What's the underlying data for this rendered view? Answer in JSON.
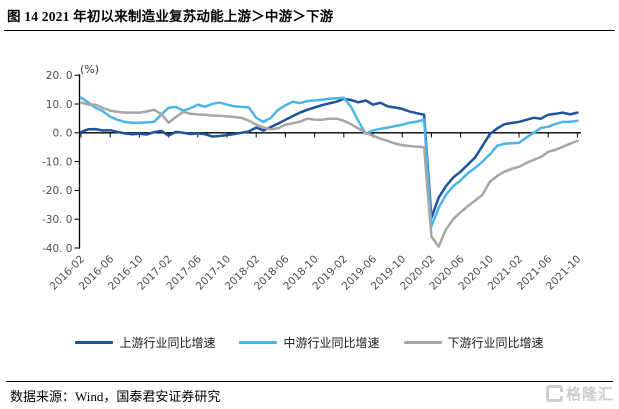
{
  "title": "图 14 2021 年初以来制造业复苏动能上游＞中游＞下游",
  "unit_label": "(%)",
  "footer": {
    "source": "数据来源：Wind，国泰君安证券研究"
  },
  "watermark": {
    "text": "格隆汇"
  },
  "axis_colors": {
    "axis": "#000000",
    "tick_label": "#4d4d4d"
  },
  "chart_data": {
    "type": "line",
    "title": "图 14 2021 年初以来制造业复苏动能上游＞中游＞下游",
    "unit": "(%)",
    "ylim": [
      -40,
      20
    ],
    "ytick_step": 10,
    "ytick_labels": [
      "20. 0",
      "10. 0",
      "0. 0",
      "-10. 0",
      "-20. 0",
      "-30. 0",
      "-40. 0"
    ],
    "ytick_values": [
      20,
      10,
      0,
      -10,
      -20,
      -30,
      -40
    ],
    "grid": false,
    "legend_position": "bottom",
    "x": [
      "2016-02",
      "2016-03",
      "2016-04",
      "2016-05",
      "2016-06",
      "2016-07",
      "2016-08",
      "2016-09",
      "2016-10",
      "2016-11",
      "2016-12",
      "2017-01",
      "2017-02",
      "2017-03",
      "2017-04",
      "2017-05",
      "2017-06",
      "2017-07",
      "2017-08",
      "2017-09",
      "2017-10",
      "2017-11",
      "2017-12",
      "2018-01",
      "2018-02",
      "2018-03",
      "2018-04",
      "2018-05",
      "2018-06",
      "2018-07",
      "2018-08",
      "2018-09",
      "2018-10",
      "2018-11",
      "2018-12",
      "2019-01",
      "2019-02",
      "2019-03",
      "2019-04",
      "2019-05",
      "2019-06",
      "2019-07",
      "2019-08",
      "2019-09",
      "2019-10",
      "2019-11",
      "2019-12",
      "2020-01",
      "2020-02",
      "2020-03",
      "2020-04",
      "2020-05",
      "2020-06",
      "2020-07",
      "2020-08",
      "2020-09",
      "2020-10",
      "2020-11",
      "2020-12",
      "2021-01",
      "2021-02",
      "2021-03",
      "2021-04",
      "2021-05",
      "2021-06",
      "2021-07",
      "2021-08",
      "2021-09",
      "2021-10"
    ],
    "x_tick_labels": [
      "2016-02",
      "2016-06",
      "2016-10",
      "2017-02",
      "2017-06",
      "2017-10",
      "2018-02",
      "2018-06",
      "2018-10",
      "2019-02",
      "2019-06",
      "2019-10",
      "2020-02",
      "2020-06",
      "2020-10",
      "2021-02",
      "2021-06",
      "2021-10"
    ],
    "x_tick_every": 4,
    "series": [
      {
        "name": "上游行业同比增速",
        "color": "#1e549c",
        "values": [
          0.3,
          1.2,
          1.3,
          0.8,
          0.9,
          0.3,
          -0.2,
          -0.5,
          -0.3,
          -0.6,
          0.2,
          0.7,
          -1.0,
          0.3,
          0.0,
          -0.4,
          -0.2,
          -0.5,
          -1.3,
          -1.1,
          -0.8,
          -0.4,
          0.0,
          0.5,
          1.8,
          0.8,
          2.0,
          3.2,
          4.5,
          5.8,
          7.0,
          8.0,
          8.8,
          9.6,
          10.2,
          10.8,
          11.8,
          11.4,
          10.6,
          11.2,
          9.8,
          10.4,
          9.2,
          8.8,
          8.3,
          7.4,
          6.8,
          6.3,
          -29.5,
          -22.5,
          -18.5,
          -15.5,
          -13.5,
          -11.0,
          -8.5,
          -4.5,
          -0.5,
          1.5,
          3.0,
          3.4,
          3.8,
          4.5,
          5.2,
          4.9,
          6.3,
          6.6,
          7.0,
          6.4,
          7.0
        ]
      },
      {
        "name": "中游行业同比增速",
        "color": "#4db4ea",
        "values": [
          12.2,
          10.5,
          8.7,
          7.5,
          5.6,
          4.5,
          3.8,
          3.5,
          3.5,
          3.6,
          3.8,
          6.3,
          8.7,
          9.0,
          7.7,
          8.5,
          9.8,
          9.0,
          10.1,
          10.5,
          9.8,
          9.2,
          9.0,
          8.8,
          5.2,
          3.8,
          5.2,
          8.0,
          9.5,
          10.8,
          10.3,
          11.0,
          11.2,
          11.5,
          11.8,
          12.0,
          12.2,
          9.0,
          4.0,
          -0.3,
          0.8,
          1.4,
          1.8,
          2.3,
          2.8,
          3.5,
          3.9,
          4.5,
          -32.5,
          -26.0,
          -21.5,
          -18.5,
          -16.5,
          -14.0,
          -12.2,
          -10.0,
          -7.5,
          -4.5,
          -3.8,
          -3.6,
          -3.5,
          -1.7,
          0.0,
          1.7,
          2.1,
          3.1,
          3.8,
          3.8,
          4.2
        ]
      },
      {
        "name": "下游行业同比增速",
        "color": "#a6a6a6",
        "values": [
          10.5,
          9.8,
          9.8,
          8.6,
          7.7,
          7.3,
          7.0,
          7.0,
          7.0,
          7.4,
          8.0,
          6.5,
          3.5,
          5.5,
          7.3,
          6.6,
          6.4,
          6.3,
          6.0,
          5.9,
          5.7,
          5.5,
          5.2,
          4.2,
          2.8,
          1.8,
          1.2,
          1.6,
          2.8,
          3.3,
          3.9,
          4.9,
          4.6,
          4.5,
          4.9,
          4.9,
          4.2,
          3.0,
          1.5,
          0.0,
          -1.0,
          -2.0,
          -2.8,
          -3.7,
          -4.3,
          -4.6,
          -4.8,
          -5.0,
          -36.0,
          -39.5,
          -33.5,
          -30.0,
          -27.5,
          -25.5,
          -23.5,
          -21.5,
          -17.0,
          -15.0,
          -13.5,
          -12.5,
          -11.8,
          -10.5,
          -9.4,
          -8.4,
          -6.6,
          -5.9,
          -4.9,
          -3.8,
          -2.8
        ]
      }
    ]
  }
}
